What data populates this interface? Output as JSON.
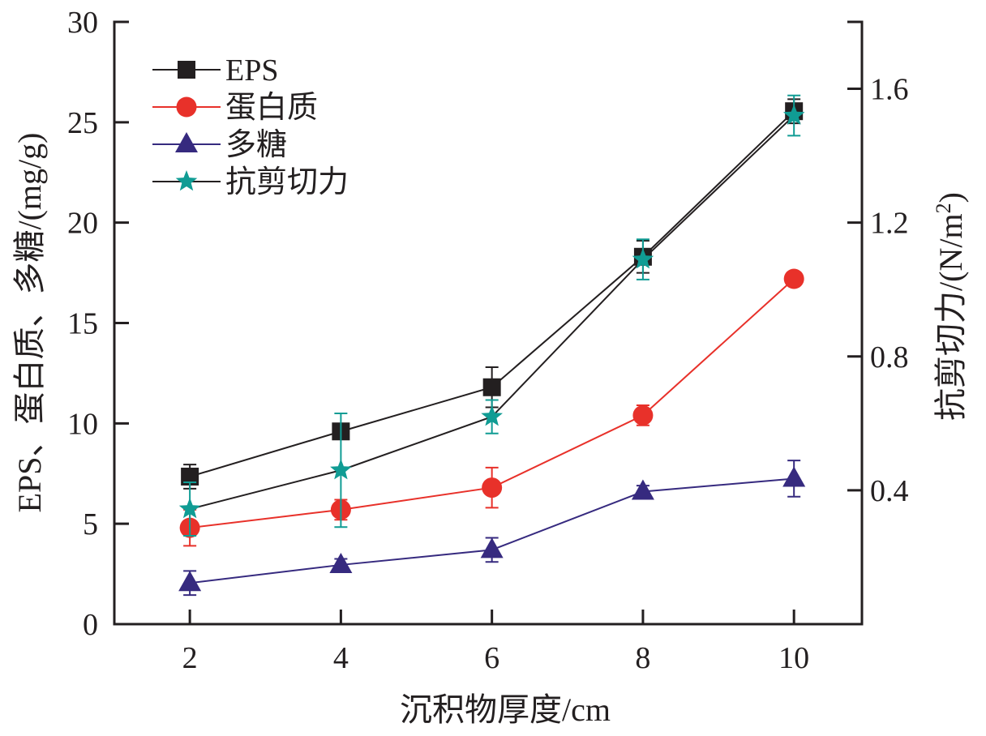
{
  "chart_data": {
    "type": "line",
    "title": "",
    "xlabel": "沉积物厚度/cm",
    "ylabel": "EPS、蛋白质、多糖/(mg/g)",
    "y2label": "抗剪切力/(N/m²)",
    "y2label_main": "抗剪切力/(N/m",
    "y2label_sup": "2",
    "y2label_close": ")",
    "x": [
      2,
      4,
      6,
      8,
      10
    ],
    "xticks": [
      "2",
      "4",
      "6",
      "8",
      "10"
    ],
    "xlim": [
      1,
      10.9
    ],
    "ylim": [
      0,
      30
    ],
    "yticks": [
      "0",
      "5",
      "10",
      "15",
      "20",
      "25",
      "30"
    ],
    "y2lim": [
      0,
      1.8
    ],
    "y2ticks": [
      "0.4",
      "0.8",
      "1.2",
      "1.6"
    ],
    "grid": false,
    "legend_position": "top-left",
    "series": [
      {
        "name": "EPS",
        "axis": "left",
        "marker": "square",
        "color": "#231f20",
        "line_color": "#231f20",
        "values": [
          7.35,
          9.6,
          11.8,
          18.3,
          25.55
        ],
        "errors": [
          0.6,
          0.3,
          1.0,
          0.8,
          0.6
        ]
      },
      {
        "name": "蛋白质",
        "axis": "left",
        "marker": "circle",
        "color": "#e8312a",
        "line_color": "#e8312a",
        "values": [
          4.8,
          5.7,
          6.8,
          10.4,
          17.2
        ],
        "errors": [
          0.9,
          0.5,
          1.0,
          0.5,
          0.2
        ]
      },
      {
        "name": "多糖",
        "axis": "left",
        "marker": "triangle",
        "color": "#362a7f",
        "line_color": "#362a7f",
        "values": [
          2.05,
          2.95,
          3.7,
          6.6,
          7.25
        ],
        "errors": [
          0.6,
          0.3,
          0.6,
          0.3,
          0.9
        ]
      },
      {
        "name": "抗剪切力",
        "axis": "right",
        "marker": "star",
        "color": "#109c94",
        "line_color": "#231f20",
        "values": [
          0.344,
          0.46,
          0.62,
          1.09,
          1.52
        ],
        "errors": [
          0.08,
          0.17,
          0.05,
          0.06,
          0.06
        ]
      }
    ]
  }
}
